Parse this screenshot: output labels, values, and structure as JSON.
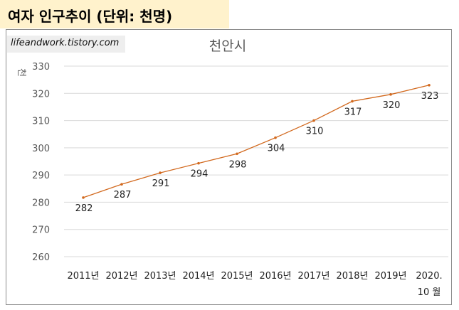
{
  "header": {
    "title": "여자 인구추이 (단위: 천명)"
  },
  "watermark": {
    "text": "lifeandwork.tistory.com"
  },
  "colors": {
    "line": "#d2691e",
    "header_bg": "#fff2cc"
  },
  "chart_data": {
    "type": "line",
    "title": "천안시",
    "xlabel": "",
    "ylabel": "천",
    "categories": [
      [
        "2011년"
      ],
      [
        "2012년"
      ],
      [
        "2013년"
      ],
      [
        "2014년"
      ],
      [
        "2015년"
      ],
      [
        "2016년"
      ],
      [
        "2017년"
      ],
      [
        "2018년"
      ],
      [
        "2019년"
      ],
      [
        "2020.",
        "10 월"
      ]
    ],
    "values": [
      281.7,
      286.6,
      290.8,
      294.3,
      297.8,
      303.7,
      310.0,
      317.1,
      319.6,
      323.0
    ],
    "labels": [
      "282",
      "287",
      "291",
      "294",
      "298",
      "304",
      "310",
      "317",
      "320",
      "323"
    ],
    "ylim": [
      260,
      330
    ],
    "yticks": [
      260,
      270,
      280,
      290,
      300,
      310,
      320,
      330
    ],
    "grid": true,
    "legend": "none"
  }
}
